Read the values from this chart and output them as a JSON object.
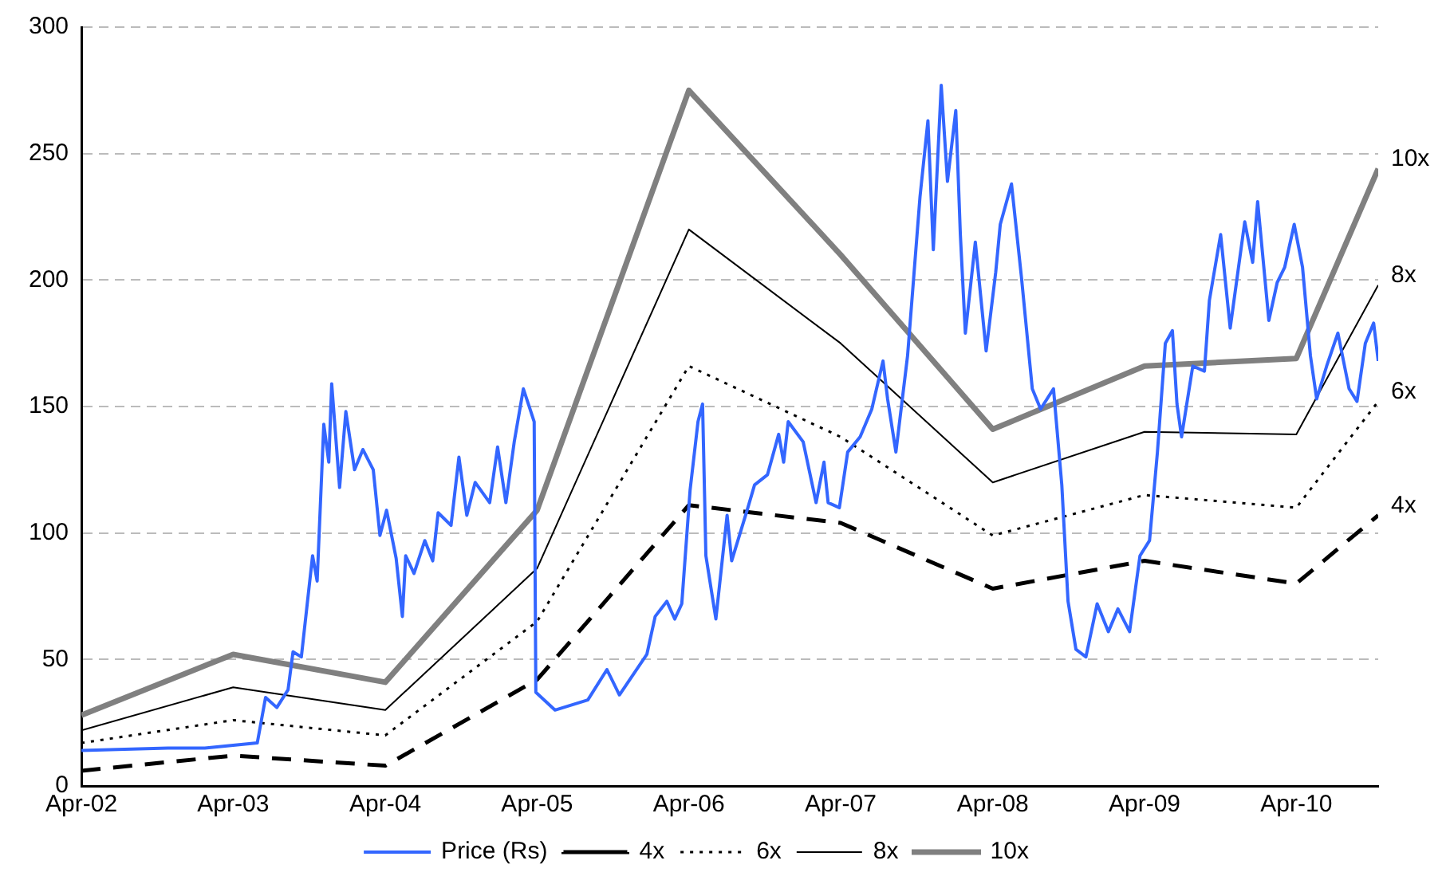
{
  "chart_data": {
    "type": "line",
    "xlim": [
      "2002-04-01",
      "2010-10-15"
    ],
    "xticks": [
      {
        "value": "2002-04",
        "label": "Apr-02"
      },
      {
        "value": "2003-04",
        "label": "Apr-03"
      },
      {
        "value": "2004-04",
        "label": "Apr-04"
      },
      {
        "value": "2005-04",
        "label": "Apr-05"
      },
      {
        "value": "2006-04",
        "label": "Apr-06"
      },
      {
        "value": "2007-04",
        "label": "Apr-07"
      },
      {
        "value": "2008-04",
        "label": "Apr-08"
      },
      {
        "value": "2009-04",
        "label": "Apr-09"
      },
      {
        "value": "2010-04",
        "label": "Apr-10"
      }
    ],
    "ylim": [
      0,
      300
    ],
    "yticks": [
      0,
      50,
      100,
      150,
      200,
      250,
      300
    ],
    "grid": "y",
    "legend": "bottom",
    "marker": "none",
    "series": [
      {
        "name": "Price (Rs)",
        "color": "#3366ff",
        "line_style": "solid",
        "x": [
          "2002-04-01",
          "2002-10-26",
          "2003-01-23",
          "2003-05-29",
          "2003-06-18",
          "2003-07-15",
          "2003-08-11",
          "2003-08-23",
          "2003-09-12",
          "2003-10-09",
          "2003-10-20",
          "2003-11-05",
          "2003-11-17",
          "2003-11-24",
          "2003-12-13",
          "2003-12-28",
          "2004-01-18",
          "2004-02-07",
          "2004-03-03",
          "2004-03-19",
          "2004-04-04",
          "2004-04-27",
          "2004-05-12",
          "2004-05-20",
          "2004-06-09",
          "2004-07-05",
          "2004-07-24",
          "2004-08-06",
          "2004-09-06",
          "2004-09-25",
          "2004-10-14",
          "2004-11-03",
          "2004-12-08",
          "2004-12-27",
          "2005-01-16",
          "2005-02-05",
          "2005-02-27",
          "2005-03-25",
          "2005-03-29",
          "2005-05-14",
          "2005-08-01",
          "2005-09-16",
          "2005-10-16",
          "2005-12-21",
          "2006-01-10",
          "2006-02-07",
          "2006-02-26",
          "2006-03-15",
          "2006-04-04",
          "2006-04-23",
          "2006-05-04",
          "2006-05-12",
          "2006-06-05",
          "2006-07-02",
          "2006-07-13",
          "2006-08-21",
          "2006-09-06",
          "2006-10-07",
          "2006-11-03",
          "2006-11-15",
          "2006-11-26",
          "2007-01-01",
          "2007-02-01",
          "2007-02-20",
          "2007-03-02",
          "2007-03-29",
          "2007-04-18",
          "2007-05-18",
          "2007-06-15",
          "2007-07-12",
          "2007-07-23",
          "2007-08-12",
          "2007-09-09",
          "2007-10-09",
          "2007-10-28",
          "2007-11-10",
          "2007-11-29",
          "2007-12-14",
          "2008-01-03",
          "2008-01-14",
          "2008-01-26",
          "2008-02-19",
          "2008-03-16",
          "2008-04-08",
          "2008-04-19",
          "2008-05-16",
          "2008-06-09",
          "2008-07-05",
          "2008-07-25",
          "2008-08-25",
          "2008-09-14",
          "2008-09-29",
          "2008-10-18",
          "2008-11-11",
          "2008-12-08",
          "2009-01-04",
          "2009-01-27",
          "2009-02-24",
          "2009-03-21",
          "2009-04-13",
          "2009-05-02",
          "2009-05-21",
          "2009-06-07",
          "2009-06-18",
          "2009-06-29",
          "2009-07-26",
          "2009-08-23",
          "2009-09-04",
          "2009-10-01",
          "2009-10-24",
          "2009-11-28",
          "2009-12-17",
          "2009-12-29",
          "2010-01-25",
          "2010-02-14",
          "2010-03-04",
          "2010-03-27",
          "2010-04-16",
          "2010-05-05",
          "2010-05-20",
          "2010-06-13",
          "2010-07-10",
          "2010-08-06",
          "2010-08-25",
          "2010-09-14",
          "2010-10-04",
          "2010-10-15"
        ],
        "values": [
          14,
          15,
          15,
          17,
          35,
          31,
          38,
          53,
          51,
          91,
          81,
          143,
          128,
          159,
          118,
          148,
          125,
          133,
          125,
          99,
          109,
          90,
          67,
          91,
          84,
          97,
          89,
          108,
          103,
          130,
          107,
          120,
          112,
          134,
          112,
          136,
          157,
          144,
          37,
          30,
          34,
          46,
          36,
          52,
          67,
          73,
          66,
          72,
          117,
          144,
          151,
          91,
          66,
          107,
          89,
          110,
          119,
          123,
          139,
          128,
          144,
          136,
          112,
          128,
          112,
          110,
          132,
          138,
          149,
          168,
          153,
          132,
          170,
          233,
          263,
          212,
          277,
          239,
          267,
          218,
          179,
          215,
          172,
          203,
          222,
          238,
          201,
          157,
          149,
          157,
          119,
          73,
          54,
          51,
          72,
          61,
          70,
          61,
          91,
          97,
          132,
          175,
          180,
          151,
          138,
          166,
          164,
          192,
          218,
          181,
          223,
          207,
          231,
          184,
          199,
          205,
          222,
          205,
          170,
          153,
          166,
          179,
          157,
          152,
          175,
          183,
          168
        ]
      },
      {
        "name": "4x",
        "color": "#000000",
        "line_style": "dashed",
        "x": [
          "2002-04-01",
          "2003-04-01",
          "2004-04-01",
          "2005-04-01",
          "2006-04-01",
          "2007-04-01",
          "2008-04-01",
          "2009-04-01",
          "2010-04-01",
          "2010-10-15"
        ],
        "values": [
          6,
          12,
          8,
          42,
          111,
          104,
          78,
          89,
          80,
          107
        ]
      },
      {
        "name": "6x",
        "color": "#000000",
        "line_style": "dotted",
        "x": [
          "2002-04-01",
          "2003-04-01",
          "2004-04-01",
          "2005-04-01",
          "2006-04-01",
          "2007-04-01",
          "2008-04-01",
          "2009-04-01",
          "2010-04-01",
          "2010-10-15"
        ],
        "values": [
          17,
          26,
          20,
          65,
          166,
          138,
          99,
          115,
          110,
          152
        ]
      },
      {
        "name": "8x",
        "color": "#000000",
        "line_style": "solid",
        "x": [
          "2002-04-01",
          "2003-04-01",
          "2004-04-01",
          "2005-04-01",
          "2006-04-01",
          "2007-04-01",
          "2008-04-01",
          "2009-04-01",
          "2010-04-01",
          "2010-10-15"
        ],
        "values": [
          22,
          39,
          30,
          86,
          220,
          175,
          120,
          140,
          139,
          198
        ]
      },
      {
        "name": "10x",
        "color": "#808080",
        "line_style": "solid",
        "x": [
          "2002-04-01",
          "2003-04-01",
          "2004-04-01",
          "2005-04-01",
          "2006-04-01",
          "2007-04-01",
          "2008-04-01",
          "2009-04-01",
          "2010-04-01",
          "2010-10-15"
        ],
        "values": [
          28,
          52,
          41,
          109,
          275,
          210,
          141,
          166,
          169,
          244
        ]
      }
    ],
    "annotations": [
      {
        "text": "10x",
        "x": "2010-10-15",
        "y": 244
      },
      {
        "text": "8x",
        "x": "2010-10-15",
        "y": 198
      },
      {
        "text": "6x",
        "x": "2010-10-15",
        "y": 152
      },
      {
        "text": "4x",
        "x": "2010-10-15",
        "y": 107
      }
    ]
  }
}
